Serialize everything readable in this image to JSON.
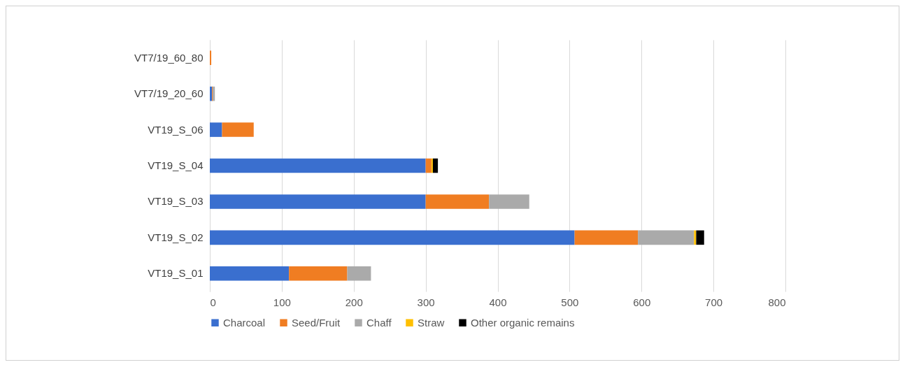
{
  "chart_data": {
    "type": "bar",
    "orientation": "horizontal",
    "stacked": true,
    "categories": [
      "VT7/19_60_80",
      "VT7/19_20_60",
      "VT19_S_06",
      "VT19_S_04",
      "VT19_S_03",
      "VT19_S_02",
      "VT19_S_01"
    ],
    "series": [
      {
        "name": "Charcoal",
        "color": "#3a6fcf",
        "values": [
          0,
          3,
          17,
          300,
          300,
          507,
          110
        ]
      },
      {
        "name": "Seed/Fruit",
        "color": "#f07d22",
        "values": [
          2,
          1,
          44,
          8,
          88,
          88,
          81
        ]
      },
      {
        "name": "Chaff",
        "color": "#aaaaaa",
        "values": [
          0,
          3,
          0,
          0,
          56,
          78,
          33
        ]
      },
      {
        "name": "Straw",
        "color": "#ffc000",
        "values": [
          0,
          0,
          0,
          2,
          0,
          3,
          0
        ]
      },
      {
        "name": "Other organic remains",
        "color": "#000000",
        "values": [
          0,
          0,
          0,
          7,
          0,
          11,
          0
        ]
      }
    ],
    "xlim": [
      0,
      800
    ],
    "xticks": [
      0,
      100,
      200,
      300,
      400,
      500,
      600,
      700,
      800
    ],
    "grid": "x",
    "legend": "bottom"
  }
}
